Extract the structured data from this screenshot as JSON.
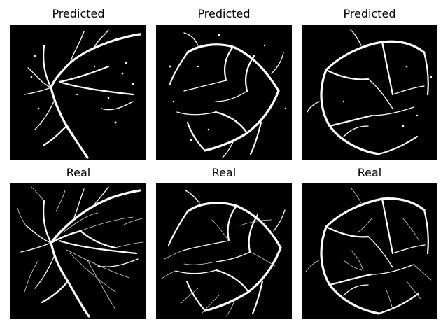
{
  "figure": {
    "panels": [
      {
        "title": "Predicted",
        "row": "predicted",
        "image": "retinal-vessel-segmentation-1"
      },
      {
        "title": "Predicted",
        "row": "predicted",
        "image": "retinal-vessel-segmentation-2"
      },
      {
        "title": "Predicted",
        "row": "predicted",
        "image": "retinal-vessel-segmentation-3"
      },
      {
        "title": "Real",
        "row": "real",
        "image": "retinal-vessel-segmentation-1"
      },
      {
        "title": "Real",
        "row": "real",
        "image": "retinal-vessel-segmentation-2"
      },
      {
        "title": "Real",
        "row": "real",
        "image": "retinal-vessel-segmentation-3"
      }
    ],
    "colors": {
      "background": "#000000",
      "vessel": "#ffffff"
    }
  }
}
